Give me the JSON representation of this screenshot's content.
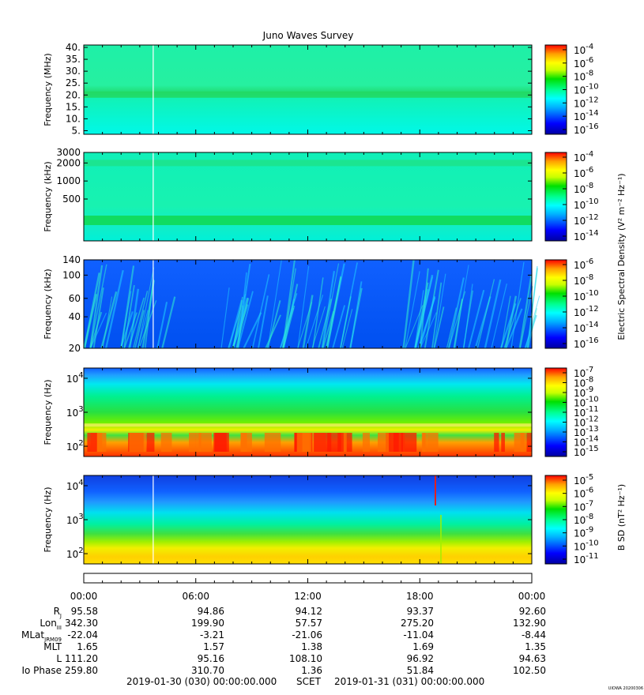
{
  "title": "Juno Waves Survey",
  "watermark": "UIOWA 20200306",
  "colorscale": [
    "#0000a0",
    "#0000ff",
    "#00c8ff",
    "#00ffff",
    "#00ff80",
    "#00e000",
    "#c8ff00",
    "#ffff00",
    "#ffa500",
    "#ff0000"
  ],
  "chart_data": [
    {
      "type": "heatmap",
      "panel": 1,
      "ylabel": "Frequency (MHz)",
      "ylim": [
        3.5,
        41
      ],
      "yscale": "linear",
      "yticks": [
        {
          "v": 5,
          "label": "5."
        },
        {
          "v": 10,
          "label": "10."
        },
        {
          "v": 15,
          "label": "15."
        },
        {
          "v": 20,
          "label": "20."
        },
        {
          "v": 25,
          "label": "25."
        },
        {
          "v": 30,
          "label": "30."
        },
        {
          "v": 35,
          "label": "35."
        },
        {
          "v": 40,
          "label": "40."
        }
      ],
      "colorbar": {
        "ticks": [
          {
            "base": "10",
            "exp": "-4"
          },
          {
            "base": "10",
            "exp": "-6"
          },
          {
            "base": "10",
            "exp": "-8"
          },
          {
            "base": "10",
            "exp": "-10"
          },
          {
            "base": "10",
            "exp": "-12"
          },
          {
            "base": "10",
            "exp": "-14"
          },
          {
            "base": "10",
            "exp": "-16"
          }
        ]
      }
    },
    {
      "type": "heatmap",
      "panel": 2,
      "ylabel": "Frequency (kHz)",
      "ylim": [
        100,
        3000
      ],
      "yscale": "log",
      "yticks": [
        {
          "v": 500,
          "label": "500"
        },
        {
          "v": 1000,
          "label": "1000"
        },
        {
          "v": 2000,
          "label": "2000"
        },
        {
          "v": 3000,
          "label": "3000"
        }
      ],
      "colorbar": {
        "ticks": [
          {
            "base": "10",
            "exp": "-4"
          },
          {
            "base": "10",
            "exp": "-6"
          },
          {
            "base": "10",
            "exp": "-8"
          },
          {
            "base": "10",
            "exp": "-10"
          },
          {
            "base": "10",
            "exp": "-12"
          },
          {
            "base": "10",
            "exp": "-14"
          }
        ]
      }
    },
    {
      "type": "heatmap",
      "panel": 3,
      "ylabel": "Frequency (kHz)",
      "ylim": [
        20,
        140
      ],
      "yscale": "log",
      "yticks": [
        {
          "v": 20,
          "label": "20"
        },
        {
          "v": 40,
          "label": "40"
        },
        {
          "v": 60,
          "label": "60"
        },
        {
          "v": 100,
          "label": "100"
        },
        {
          "v": 140,
          "label": "140"
        }
      ],
      "colorbar": {
        "ticks": [
          {
            "base": "10",
            "exp": "-6"
          },
          {
            "base": "10",
            "exp": "-8"
          },
          {
            "base": "10",
            "exp": "-10"
          },
          {
            "base": "10",
            "exp": "-12"
          },
          {
            "base": "10",
            "exp": "-14"
          },
          {
            "base": "10",
            "exp": "-16"
          }
        ]
      }
    },
    {
      "type": "heatmap",
      "panel": 4,
      "ylabel": "Frequency (Hz)",
      "ylim": [
        50,
        20000
      ],
      "yscale": "log",
      "yticks": [
        {
          "v": 100,
          "base": "10",
          "exp": "2"
        },
        {
          "v": 1000,
          "base": "10",
          "exp": "3"
        },
        {
          "v": 10000,
          "base": "10",
          "exp": "4"
        }
      ],
      "colorbar": {
        "ticks": [
          {
            "base": "10",
            "exp": "-7"
          },
          {
            "base": "10",
            "exp": "-8"
          },
          {
            "base": "10",
            "exp": "-9"
          },
          {
            "base": "10",
            "exp": "-10"
          },
          {
            "base": "10",
            "exp": "-11"
          },
          {
            "base": "10",
            "exp": "-12"
          },
          {
            "base": "10",
            "exp": "-13"
          },
          {
            "base": "10",
            "exp": "-14"
          },
          {
            "base": "10",
            "exp": "-15"
          }
        ]
      }
    },
    {
      "type": "heatmap",
      "panel": 5,
      "ylabel": "Frequency (Hz)",
      "ylim": [
        50,
        20000
      ],
      "yscale": "log",
      "yticks": [
        {
          "v": 100,
          "base": "10",
          "exp": "2"
        },
        {
          "v": 1000,
          "base": "10",
          "exp": "3"
        },
        {
          "v": 10000,
          "base": "10",
          "exp": "4"
        }
      ],
      "colorbar": {
        "ticks": [
          {
            "base": "10",
            "exp": "-5"
          },
          {
            "base": "10",
            "exp": "-6"
          },
          {
            "base": "10",
            "exp": "-7"
          },
          {
            "base": "10",
            "exp": "-8"
          },
          {
            "base": "10",
            "exp": "-9"
          },
          {
            "base": "10",
            "exp": "-10"
          },
          {
            "base": "10",
            "exp": "-11"
          }
        ]
      }
    }
  ],
  "colorbar_labels": {
    "e_field": "Electric Spectral Density (V² m⁻² Hz⁻¹)",
    "b_field": "B SD (nT² Hz⁻¹)"
  },
  "ephemeris": {
    "times": [
      "00:00",
      "06:00",
      "12:00",
      "18:00",
      "00:00"
    ],
    "rows": [
      {
        "label": "R",
        "sub": "J",
        "values": [
          "95.58",
          "94.86",
          "94.12",
          "93.37",
          "92.60"
        ]
      },
      {
        "label": "Lon",
        "sub": "III",
        "values": [
          "342.30",
          "199.90",
          "57.57",
          "275.20",
          "132.90"
        ]
      },
      {
        "label": "MLat",
        "sub": "JRM09",
        "values": [
          "-22.04",
          "-3.21",
          "-21.06",
          "-11.04",
          "-8.44"
        ]
      },
      {
        "label": "MLT",
        "sub": "",
        "values": [
          "1.65",
          "1.57",
          "1.38",
          "1.69",
          "1.35"
        ]
      },
      {
        "label": "L",
        "sub": "",
        "values": [
          "111.20",
          "95.16",
          "108.10",
          "96.92",
          "94.63"
        ]
      },
      {
        "label": "Io Phase",
        "sub": "",
        "values": [
          "259.80",
          "310.70",
          "1.36",
          "51.84",
          "102.50"
        ]
      }
    ]
  },
  "footer": {
    "start": "2019-01-30 (030) 00:00:00.000",
    "frame": "SCET",
    "end": "2019-01-31 (031) 00:00:00.000"
  }
}
